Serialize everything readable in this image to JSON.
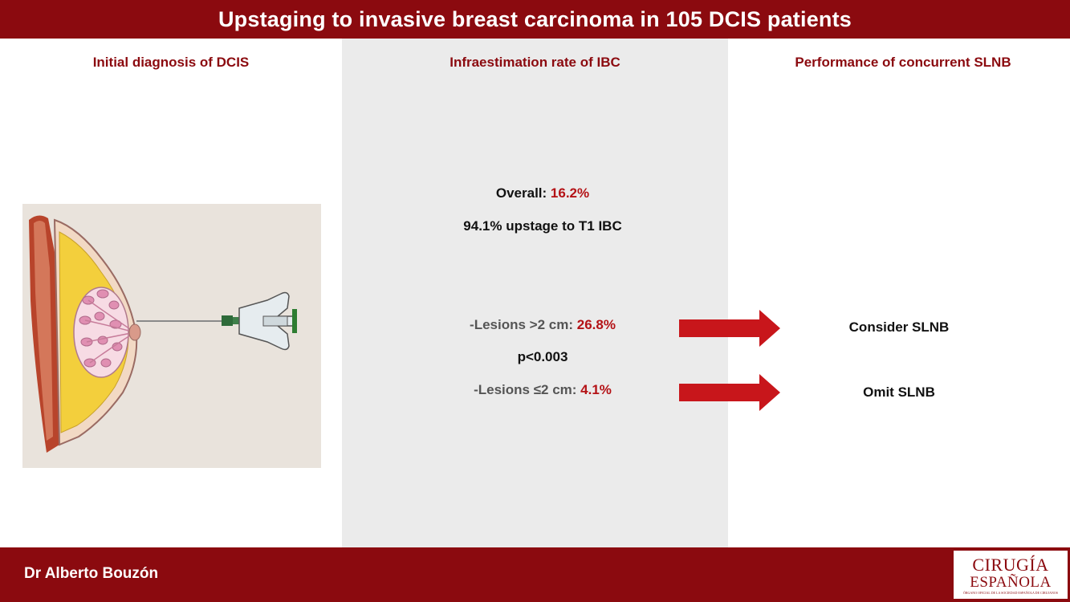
{
  "title": "Upstaging to invasive breast carcinoma in 105 DCIS patients",
  "columns": {
    "left": {
      "heading": "Initial diagnosis of DCIS"
    },
    "middle": {
      "heading": "Infraestimation rate of IBC"
    },
    "right": {
      "heading": "Performance of concurrent SLNB"
    }
  },
  "results": {
    "overall_label": "Overall: ",
    "overall_value": "16.2%",
    "t1_text": "94.1% upstage to T1 IBC",
    "large_label": "-Lesions >2 cm: ",
    "large_value": "26.8%",
    "p_value": "p<0.003",
    "small_label": "-Lesions ≤2 cm: ",
    "small_value": "4.1%"
  },
  "outcomes": {
    "large": "Consider SLNB",
    "small": "Omit SLNB"
  },
  "footer": {
    "author": "Dr Alberto Bouzón",
    "logo_line1": "CIRUGÍA",
    "logo_line2": "ESPAÑOLA",
    "logo_line3": "ÓRGANO OFICIAL DE LA SOCIEDAD ESPAÑOLA DE CIRUJANOS"
  },
  "colors": {
    "brand": "#8b0a0f",
    "highlight": "#b41216",
    "arrow": "#c8161b",
    "middle_panel": "#ebebeb"
  },
  "icons": {
    "illustration": "breast-biopsy-illustration",
    "arrow": "right-arrow-icon"
  }
}
